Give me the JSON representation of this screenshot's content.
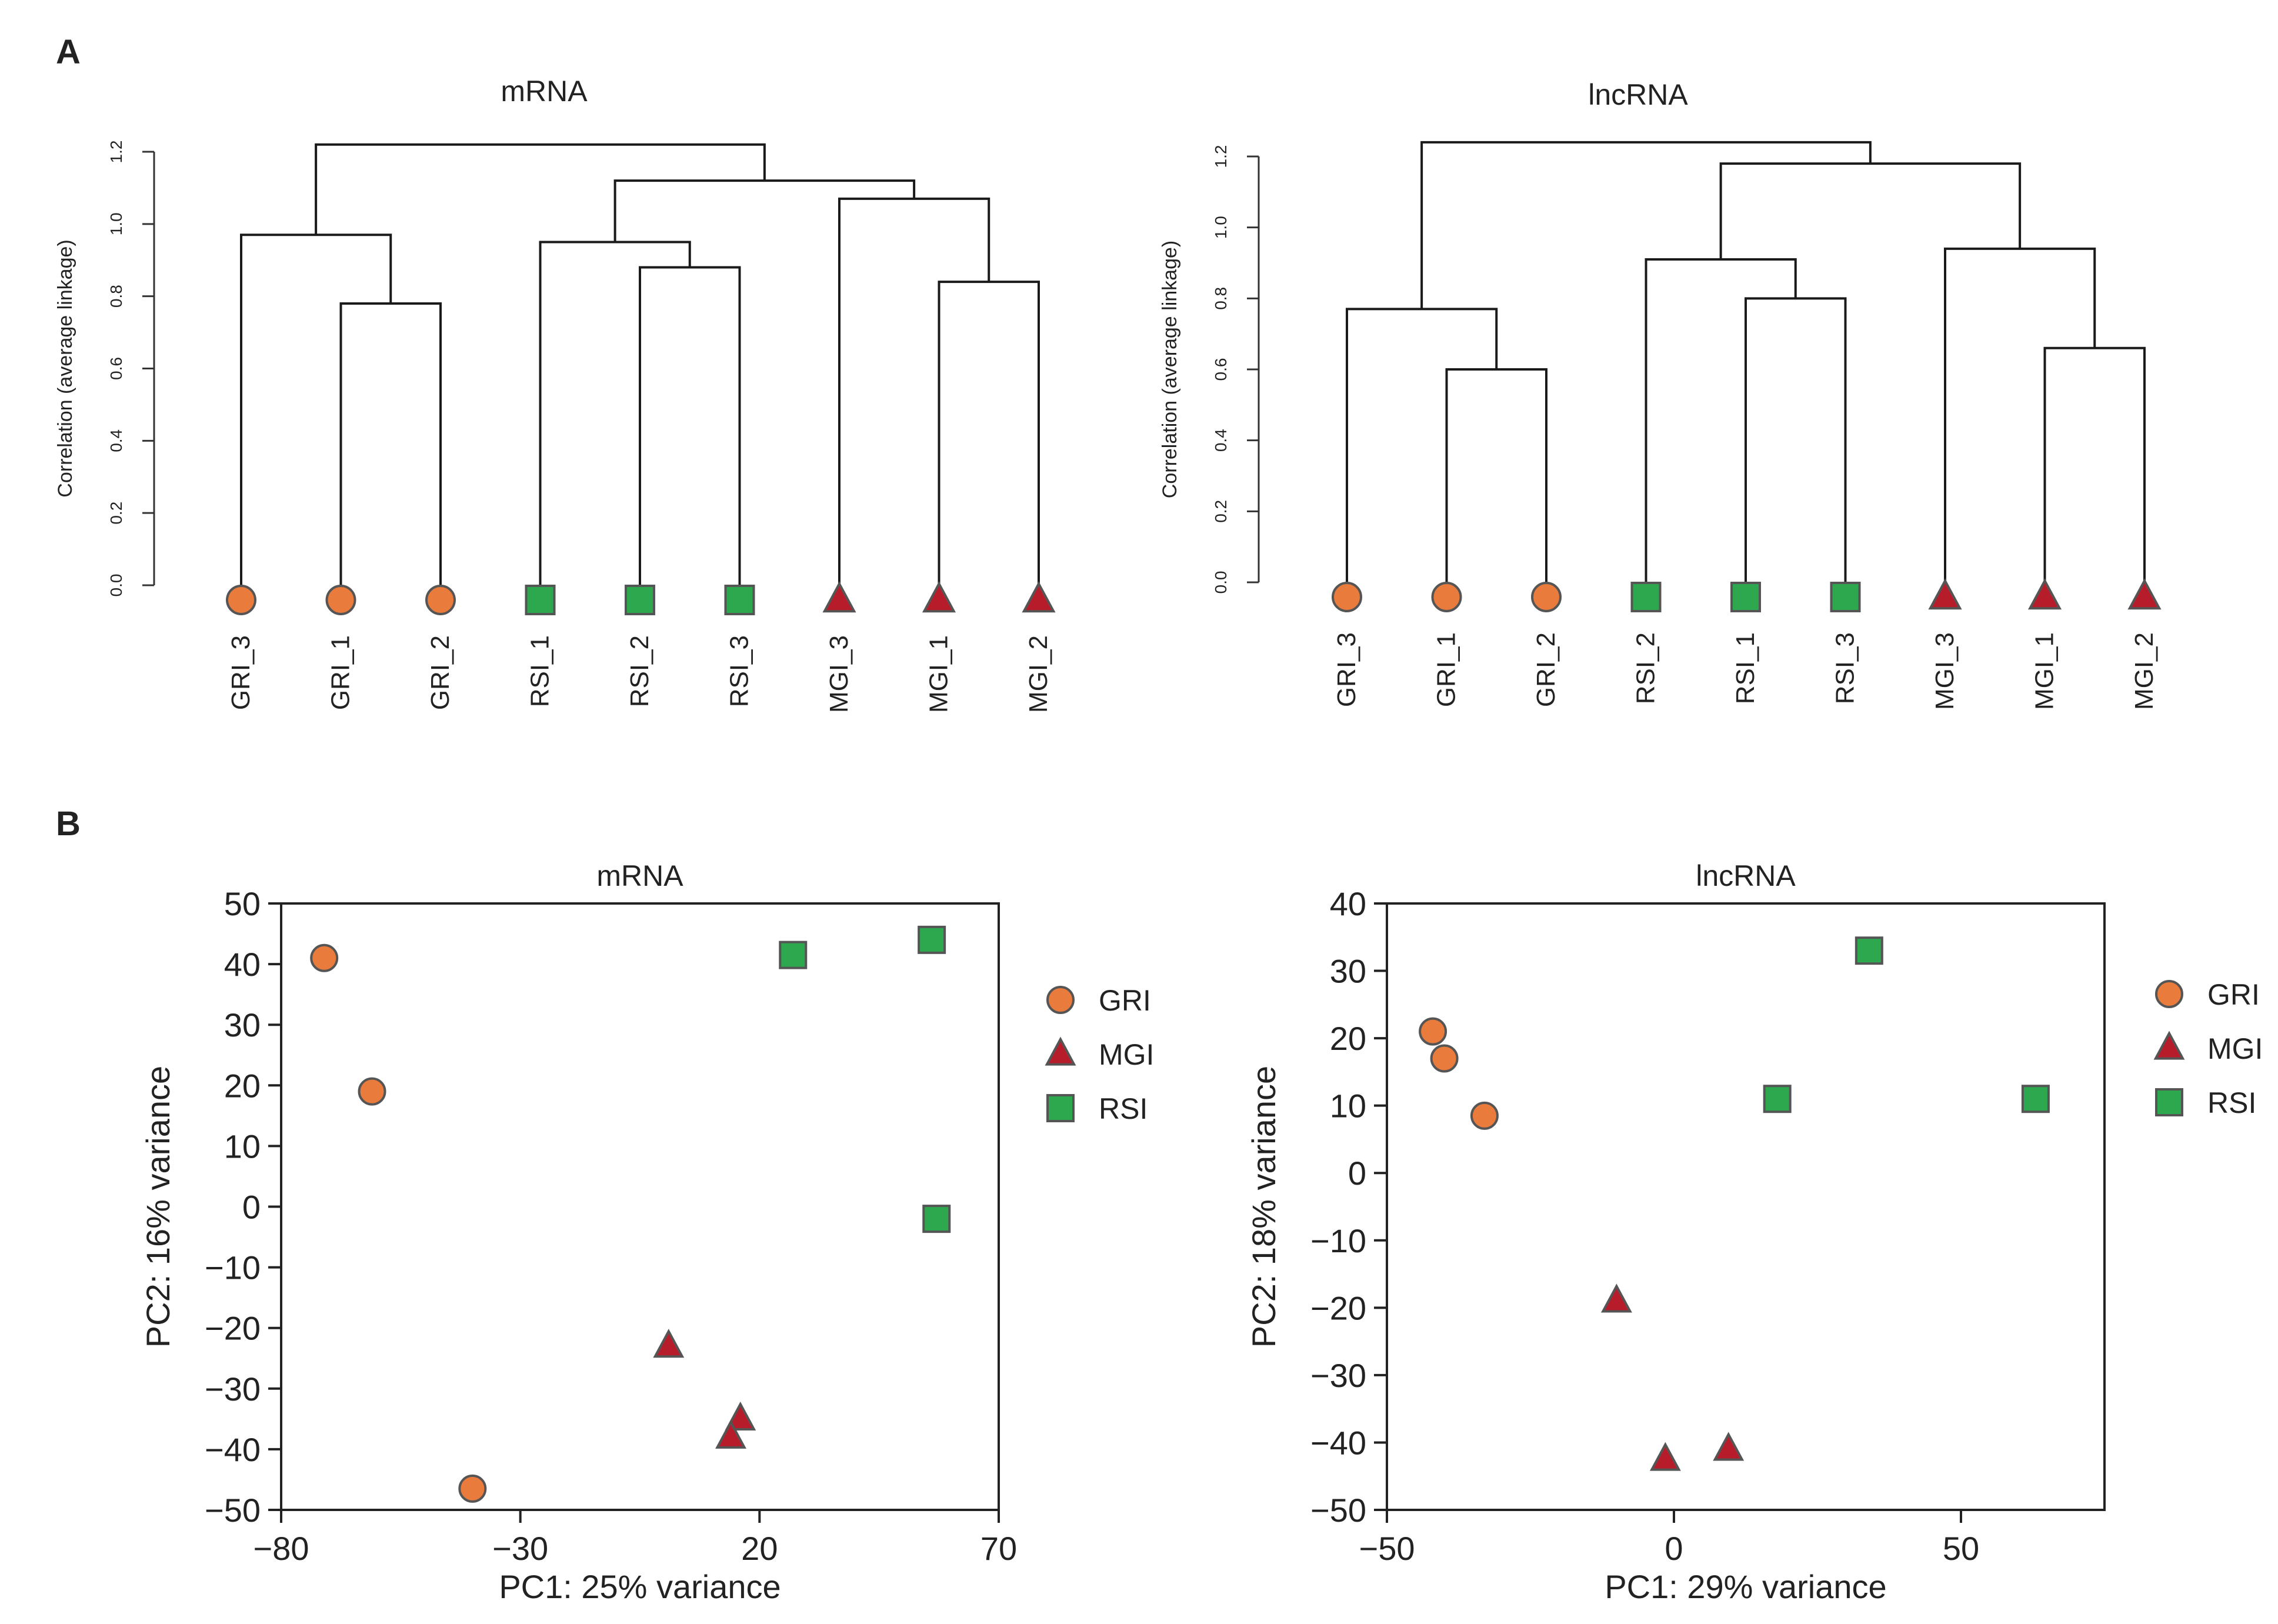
{
  "panels": {
    "a_label": "A",
    "b_label": "B"
  },
  "colors": {
    "GRI": "#E97B3C",
    "MGI": "#B71C2A",
    "RSI": "#2DA84F",
    "outline": "#555555",
    "line": "#1a1a1a"
  },
  "chart_data": [
    {
      "type": "dendrogram",
      "title": "mRNA",
      "ylabel": "Correlation (average linkage)",
      "ylim": [
        0,
        1.2
      ],
      "yticks": [
        "0.0",
        "0.2",
        "0.4",
        "0.6",
        "0.8",
        "1.0",
        "1.2"
      ],
      "leaves": [
        {
          "label": "GRI_3",
          "group": "GRI"
        },
        {
          "label": "GRI_1",
          "group": "GRI"
        },
        {
          "label": "GRI_2",
          "group": "GRI"
        },
        {
          "label": "RSI_1",
          "group": "RSI"
        },
        {
          "label": "RSI_2",
          "group": "RSI"
        },
        {
          "label": "RSI_3",
          "group": "RSI"
        },
        {
          "label": "MGI_3",
          "group": "MGI"
        },
        {
          "label": "MGI_1",
          "group": "MGI"
        },
        {
          "label": "MGI_2",
          "group": "MGI"
        }
      ],
      "merges": [
        {
          "left": 1,
          "right": 2,
          "height": 0.78
        },
        {
          "left": 0,
          "right": -1,
          "height": 0.97
        },
        {
          "left": 4,
          "right": 5,
          "height": 0.88
        },
        {
          "left": 3,
          "right": -3,
          "height": 0.95
        },
        {
          "left": 7,
          "right": 8,
          "height": 0.84
        },
        {
          "left": 6,
          "right": -5,
          "height": 1.07
        },
        {
          "left": -4,
          "right": -6,
          "height": 1.12
        },
        {
          "left": -2,
          "right": -7,
          "height": 1.22
        }
      ]
    },
    {
      "type": "dendrogram",
      "title": "lncRNA",
      "ylabel": "Correlation (average linkage)",
      "ylim": [
        0,
        1.2
      ],
      "yticks": [
        "0.0",
        "0.2",
        "0.4",
        "0.6",
        "0.8",
        "1.0",
        "1.2"
      ],
      "leaves": [
        {
          "label": "GRI_3",
          "group": "GRI"
        },
        {
          "label": "GRI_1",
          "group": "GRI"
        },
        {
          "label": "GRI_2",
          "group": "GRI"
        },
        {
          "label": "RSI_2",
          "group": "RSI"
        },
        {
          "label": "RSI_1",
          "group": "RSI"
        },
        {
          "label": "RSI_3",
          "group": "RSI"
        },
        {
          "label": "MGI_3",
          "group": "MGI"
        },
        {
          "label": "MGI_1",
          "group": "MGI"
        },
        {
          "label": "MGI_2",
          "group": "MGI"
        }
      ],
      "merges": [
        {
          "left": 1,
          "right": 2,
          "height": 0.6
        },
        {
          "left": 0,
          "right": -1,
          "height": 0.77
        },
        {
          "left": 4,
          "right": 5,
          "height": 0.8
        },
        {
          "left": 3,
          "right": -3,
          "height": 0.91
        },
        {
          "left": 7,
          "right": 8,
          "height": 0.66
        },
        {
          "left": 6,
          "right": -5,
          "height": 0.94
        },
        {
          "left": -4,
          "right": -6,
          "height": 1.18
        },
        {
          "left": -2,
          "right": -7,
          "height": 1.24
        }
      ]
    },
    {
      "type": "scatter",
      "title": "mRNA",
      "xlabel": "PC1: 25% variance",
      "ylabel": "PC2: 16% variance",
      "xlim": [
        -80,
        70
      ],
      "ylim": [
        -50,
        50
      ],
      "xticks": [
        -80,
        -30,
        20,
        70
      ],
      "yticks": [
        -50,
        -40,
        -30,
        -20,
        -10,
        0,
        10,
        20,
        30,
        40,
        50
      ],
      "legend": [
        {
          "label": "GRI",
          "group": "GRI"
        },
        {
          "label": "MGI",
          "group": "MGI"
        },
        {
          "label": "RSI",
          "group": "RSI"
        }
      ],
      "series": [
        {
          "name": "GRI",
          "points": [
            [
              -71,
              41
            ],
            [
              -61,
              19
            ],
            [
              -40,
              -46.5
            ]
          ]
        },
        {
          "name": "MGI",
          "points": [
            [
              1,
              -23
            ],
            [
              16,
              -35
            ],
            [
              14,
              -38
            ]
          ]
        },
        {
          "name": "RSI",
          "points": [
            [
              27,
              41.5
            ],
            [
              56,
              44
            ],
            [
              57,
              -2
            ]
          ]
        }
      ]
    },
    {
      "type": "scatter",
      "title": "lncRNA",
      "xlabel": "PC1: 29% variance",
      "ylabel": "PC2: 18% variance",
      "xlim": [
        -50,
        75
      ],
      "ylim": [
        -50,
        40
      ],
      "xticks": [
        -50,
        0,
        50
      ],
      "yticks": [
        -50,
        -40,
        -30,
        -20,
        -10,
        0,
        10,
        20,
        30,
        40
      ],
      "legend": [
        {
          "label": "GRI",
          "group": "GRI"
        },
        {
          "label": "MGI",
          "group": "MGI"
        },
        {
          "label": "RSI",
          "group": "RSI"
        }
      ],
      "series": [
        {
          "name": "GRI",
          "points": [
            [
              -42,
              21
            ],
            [
              -40,
              17
            ],
            [
              -33,
              8.5
            ]
          ]
        },
        {
          "name": "MGI",
          "points": [
            [
              -10,
              -19
            ],
            [
              -1.5,
              -42.5
            ],
            [
              9.5,
              -41
            ]
          ]
        },
        {
          "name": "RSI",
          "points": [
            [
              34,
              33
            ],
            [
              18,
              11
            ],
            [
              63,
              11
            ]
          ]
        }
      ]
    }
  ]
}
